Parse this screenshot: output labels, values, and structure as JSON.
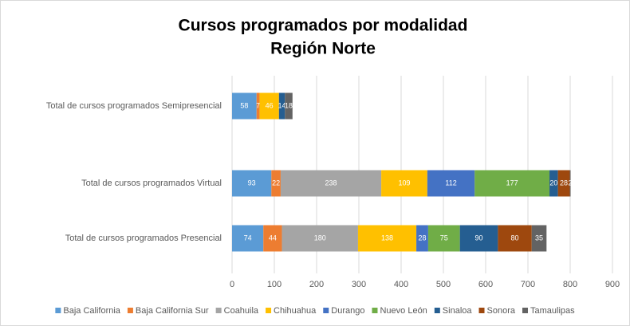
{
  "chart_data": {
    "type": "stacked_barh",
    "title": "Cursos programados por modalidad",
    "subtitle": "Región Norte",
    "categories": [
      "Total de cursos programados Semipresencial",
      "Total de cursos programados Virtual",
      "Total de cursos programados Presencial"
    ],
    "series": [
      {
        "name": "Baja California",
        "color": "#5b9bd5",
        "values": [
          58,
          93,
          74
        ]
      },
      {
        "name": "Baja California Sur",
        "color": "#ed7d31",
        "values": [
          7,
          22,
          44
        ]
      },
      {
        "name": "Coahuila",
        "color": "#a5a5a5",
        "values": [
          null,
          238,
          180
        ]
      },
      {
        "name": "Chihuahua",
        "color": "#ffc000",
        "values": [
          46,
          109,
          138
        ]
      },
      {
        "name": "Durango",
        "color": "#4472c4",
        "values": [
          null,
          112,
          28
        ]
      },
      {
        "name": "Nuevo León",
        "color": "#70ad47",
        "values": [
          null,
          177,
          75
        ]
      },
      {
        "name": "Sinaloa",
        "color": "#255e91",
        "values": [
          14,
          20,
          90
        ]
      },
      {
        "name": "Sonora",
        "color": "#9e480e",
        "values": [
          null,
          28,
          80
        ]
      },
      {
        "name": "Tamaulipas",
        "color": "#636363",
        "values": [
          18,
          2,
          35
        ]
      }
    ],
    "xlim": [
      0,
      900
    ],
    "xticks": [
      0,
      100,
      200,
      300,
      400,
      500,
      600,
      700,
      800,
      900
    ],
    "grid": true,
    "legend": "bottom"
  }
}
